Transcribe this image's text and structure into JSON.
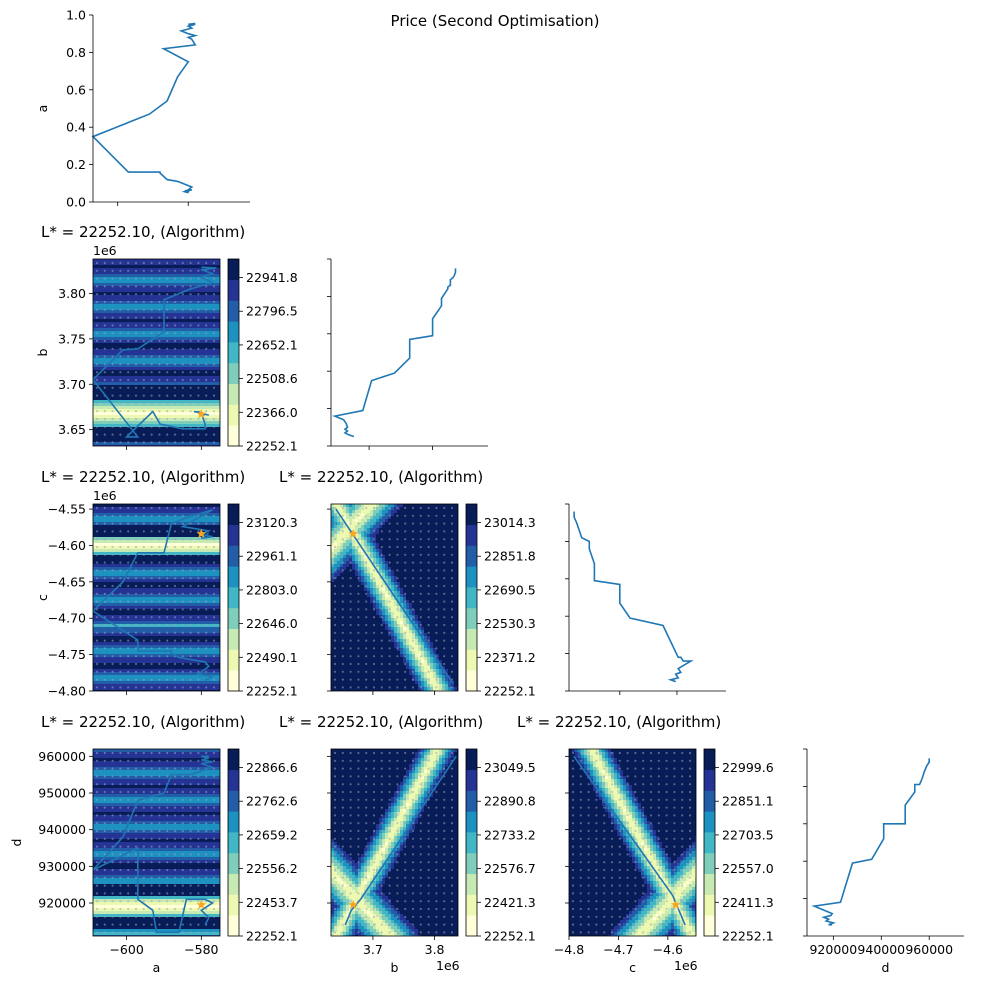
{
  "figure": {
    "suptitle": "Price (Second Optimisation)"
  },
  "colors": {
    "trace": "#1f77b4",
    "star": "#f5a623",
    "dots": "#9aa3b8",
    "colormap": [
      "#ffffd9",
      "#edf8b1",
      "#c7e9b4",
      "#7fcdbb",
      "#41b6c4",
      "#1d91c0",
      "#225ea8",
      "#253494",
      "#081d58"
    ]
  },
  "chart_data": [
    {
      "id": "diag-a",
      "type": "line",
      "row": 0,
      "col": 0,
      "title": "",
      "xlabel": "",
      "ylabel": "a",
      "xlim": [
        -607,
        -571
      ],
      "ylim": [
        0,
        1
      ],
      "xticks": [
        -600,
        -580
      ],
      "xtick_labels": [
        "",
        ""
      ],
      "yticks": [
        0.0,
        0.2,
        0.4,
        0.6,
        0.8,
        1.0
      ],
      "ytick_labels": [
        "0.0",
        "0.2",
        "0.4",
        "0.6",
        "0.8",
        "1.0"
      ],
      "x": [
        -580,
        -581,
        -580,
        -579,
        -581,
        -580,
        -580,
        -579,
        -583,
        -586,
        -588,
        -588,
        -597,
        -607,
        -591,
        -586,
        -583,
        -580,
        -587,
        -578,
        -579,
        -580,
        -578,
        -580,
        -582,
        -579,
        -580,
        -578,
        -580,
        -578
      ],
      "y": [
        0.05,
        0.055,
        0.06,
        0.065,
        0.06,
        0.055,
        0.065,
        0.08,
        0.11,
        0.12,
        0.155,
        0.16,
        0.16,
        0.35,
        0.47,
        0.54,
        0.67,
        0.75,
        0.82,
        0.84,
        0.87,
        0.88,
        0.89,
        0.9,
        0.915,
        0.93,
        0.94,
        0.95,
        0.95,
        0.955
      ]
    },
    {
      "id": "diag-b",
      "type": "line",
      "row": 1,
      "col": 1,
      "title": "",
      "xlabel": "",
      "ylabel": "",
      "xlim": [
        0,
        1
      ],
      "ylim": [
        0,
        1
      ],
      "xticks": [
        0.3,
        0.8
      ],
      "xtick_labels": [
        "",
        ""
      ],
      "yticks": [
        0.0,
        0.2,
        0.4,
        0.6,
        0.8,
        1.0
      ],
      "ytick_labels": [
        "",
        "",
        "",
        "",
        "",
        ""
      ],
      "x": [
        0.18,
        0.14,
        0.11,
        0.13,
        0.11,
        0.13,
        0.12,
        0.1,
        0.03,
        0.25,
        0.32,
        0.5,
        0.62,
        0.62,
        0.8,
        0.8,
        0.87,
        0.87,
        0.88,
        0.9,
        0.92,
        0.92,
        0.94,
        0.94,
        0.94,
        0.96,
        0.97,
        0.98,
        0.98
      ],
      "y": [
        0.05,
        0.06,
        0.07,
        0.08,
        0.09,
        0.1,
        0.12,
        0.14,
        0.16,
        0.19,
        0.35,
        0.39,
        0.47,
        0.57,
        0.59,
        0.68,
        0.75,
        0.79,
        0.8,
        0.82,
        0.84,
        0.85,
        0.86,
        0.87,
        0.89,
        0.9,
        0.91,
        0.93,
        0.95
      ]
    },
    {
      "id": "diag-c",
      "type": "line",
      "row": 2,
      "col": 2,
      "title": "",
      "xlabel": "",
      "ylabel": "",
      "xlim": [
        0,
        1
      ],
      "ylim": [
        0,
        1
      ],
      "xticks": [
        0.4,
        0.85
      ],
      "xtick_labels": [
        "",
        ""
      ],
      "yticks": [
        0.0,
        0.2,
        0.4,
        0.6,
        0.8,
        1.0
      ],
      "ytick_labels": [
        "",
        "",
        "",
        "",
        "",
        ""
      ],
      "x": [
        0.84,
        0.8,
        0.86,
        0.84,
        0.88,
        0.86,
        0.96,
        0.9,
        0.88,
        0.86,
        0.74,
        0.48,
        0.4,
        0.4,
        0.2,
        0.2,
        0.16,
        0.16,
        0.1,
        0.08,
        0.06,
        0.04,
        0.04
      ],
      "y": [
        0.05,
        0.06,
        0.07,
        0.09,
        0.1,
        0.12,
        0.16,
        0.16,
        0.18,
        0.18,
        0.35,
        0.39,
        0.47,
        0.57,
        0.59,
        0.68,
        0.76,
        0.8,
        0.82,
        0.86,
        0.9,
        0.93,
        0.96
      ]
    },
    {
      "id": "diag-d",
      "type": "line",
      "row": 3,
      "col": 3,
      "title": "",
      "xlabel": "d",
      "ylabel": "",
      "xlim": [
        909000,
        962000
      ],
      "ylim": [
        0,
        1
      ],
      "xticks": [
        920000,
        940000,
        960000
      ],
      "xtick_labels": [
        "920000",
        "940000",
        "960000"
      ],
      "yticks": [
        0.0,
        0.2,
        0.4,
        0.6,
        0.8,
        1.0
      ],
      "ytick_labels": [
        "",
        "",
        "",
        "",
        "",
        ""
      ],
      "x": [
        919500,
        918000,
        920000,
        917000,
        918000,
        916000,
        919000,
        919500,
        912000,
        923000,
        928000,
        936000,
        941000,
        941000,
        950000,
        950000,
        954000,
        954000,
        956000,
        957000,
        958000,
        959000,
        960000,
        960000
      ],
      "y": [
        0.06,
        0.06,
        0.07,
        0.08,
        0.09,
        0.1,
        0.11,
        0.12,
        0.16,
        0.18,
        0.39,
        0.41,
        0.52,
        0.6,
        0.6,
        0.7,
        0.77,
        0.81,
        0.81,
        0.84,
        0.88,
        0.91,
        0.93,
        0.95
      ]
    },
    {
      "id": "ba",
      "type": "heatmap",
      "row": 1,
      "col": 0,
      "title": "L* = 22252.10, (Algorithm)",
      "xlabel": "",
      "ylabel": "b",
      "offset_text": "1e6",
      "xlim": [
        -609,
        -575
      ],
      "ylim": [
        3632000,
        3838000
      ],
      "xticks": [
        -600,
        -580
      ],
      "xtick_labels": [
        "",
        ""
      ],
      "yticks": [
        3650000,
        3700000,
        3750000,
        3800000
      ],
      "ytick_labels": [
        "3.65",
        "3.70",
        "3.75",
        "3.80"
      ],
      "colorbar_ticks": [
        "22252.1",
        "22366.0",
        "22508.6",
        "22652.1",
        "22796.5",
        "22941.8"
      ],
      "field": "band_y",
      "band_center": 3668000,
      "band_width": 10000,
      "band_period": 220000,
      "trace_x": [
        -580,
        -579,
        -580,
        -578,
        -582,
        -580,
        -579,
        -579,
        -585,
        -591,
        -593,
        -600,
        -597,
        -609,
        -601,
        -597,
        -590,
        -590,
        -583,
        -577,
        -580,
        -577,
        -580,
        -576,
        -580
      ],
      "trace_y": [
        3665000,
        3667000,
        3668000,
        3666000,
        3670000,
        3669000,
        3656000,
        3651000,
        3651000,
        3656000,
        3670000,
        3642000,
        3642000,
        3705000,
        3738000,
        3739000,
        3758000,
        3793000,
        3805000,
        3812000,
        3818000,
        3822000,
        3826000,
        3828000,
        3829000
      ],
      "star": [
        -580,
        3667000
      ]
    },
    {
      "id": "ca",
      "type": "heatmap",
      "row": 2,
      "col": 0,
      "title": "L* = 22252.10, (Algorithm)",
      "xlabel": "",
      "ylabel": "c",
      "offset_text": "1e6",
      "xlim": [
        -609,
        -575
      ],
      "ylim": [
        -4800000,
        -4543000
      ],
      "xticks": [
        -600,
        -580
      ],
      "xtick_labels": [
        "",
        ""
      ],
      "yticks": [
        -4800000,
        -4750000,
        -4700000,
        -4650000,
        -4600000,
        -4550000
      ],
      "ytick_labels": [
        "−4.80",
        "−4.75",
        "−4.70",
        "−4.65",
        "−4.60",
        "−4.55"
      ],
      "colorbar_ticks": [
        "22252.1",
        "22490.1",
        "22646.0",
        "22803.0",
        "22961.1",
        "23120.3"
      ],
      "field": "band_y",
      "band_center": -4600000,
      "band_width": 9000,
      "band_period": 220000,
      "trace_x": [
        -579,
        -578,
        -577,
        -581,
        -580,
        -578,
        -579,
        -586,
        -588,
        -588,
        -597,
        -597,
        -609,
        -601,
        -597,
        -590,
        -588,
        -583,
        -577,
        -585,
        -578,
        -580,
        -577,
        -580,
        -578
      ],
      "trace_y": [
        -4785000,
        -4783000,
        -4780000,
        -4777000,
        -4774000,
        -4766000,
        -4760000,
        -4754000,
        -4748000,
        -4745000,
        -4745000,
        -4730000,
        -4690000,
        -4650000,
        -4610000,
        -4610000,
        -4570000,
        -4560000,
        -4551000,
        -4574000,
        -4580000,
        -4585000,
        -4588000,
        -4590000,
        -4583000
      ],
      "star": [
        -580,
        -4584000
      ]
    },
    {
      "id": "cb",
      "type": "heatmap",
      "row": 2,
      "col": 1,
      "title": "L* = 22252.10, (Algorithm)",
      "xlabel": "",
      "ylabel": "",
      "offset_text": "",
      "xlim": [
        3632000,
        3838000
      ],
      "ylim": [
        -4800000,
        -4543000
      ],
      "xticks": [
        3700000,
        3800000
      ],
      "xtick_labels": [
        "",
        ""
      ],
      "yticks": [
        -4800000,
        -4750000,
        -4700000,
        -4650000,
        -4600000,
        -4550000
      ],
      "ytick_labels": [
        "",
        "",
        "",
        "",
        "",
        ""
      ],
      "colorbar_ticks": [
        "22252.1",
        "22371.2",
        "22530.3",
        "22690.5",
        "22851.8",
        "23014.3"
      ],
      "field": "valley",
      "valley_slope": -1.2,
      "valley_anchor": [
        3668000,
        -4584000
      ],
      "trace_x": [
        3640000,
        3830000
      ],
      "trace_y": [
        -4550000,
        -4790000
      ],
      "star": [
        3668000,
        -4584000
      ]
    },
    {
      "id": "da",
      "type": "heatmap",
      "row": 3,
      "col": 0,
      "title": "L* = 22252.10, (Algorithm)",
      "xlabel": "a",
      "ylabel": "d",
      "offset_text": "",
      "xlim": [
        -609,
        -575
      ],
      "ylim": [
        911000,
        962000
      ],
      "xticks": [
        -600,
        -580
      ],
      "xtick_labels": [
        "−600",
        "−580"
      ],
      "yticks": [
        920000,
        930000,
        940000,
        950000,
        960000
      ],
      "ytick_labels": [
        "920000",
        "930000",
        "940000",
        "950000",
        "960000"
      ],
      "colorbar_ticks": [
        "22252.1",
        "22453.7",
        "22556.2",
        "22659.2",
        "22762.6",
        "22866.6"
      ],
      "field": "band_y",
      "band_center": 919000,
      "band_width": 2000,
      "band_period": 44000,
      "trace_x": [
        -579,
        -578,
        -580,
        -577,
        -579,
        -584,
        -586,
        -592,
        -593,
        -597,
        -597,
        -609,
        -601,
        -597,
        -590,
        -588,
        -583,
        -577,
        -580,
        -577,
        -580,
        -578,
        -580,
        -578
      ],
      "trace_y": [
        914000,
        916000,
        918000,
        920000,
        921000,
        921000,
        912000,
        912000,
        918000,
        921000,
        935000,
        929000,
        938000,
        948000,
        950000,
        955000,
        955000,
        957000,
        958000,
        958500,
        959000,
        959500,
        960000,
        960000
      ],
      "star": [
        -580,
        919500
      ]
    },
    {
      "id": "db",
      "type": "heatmap",
      "row": 3,
      "col": 1,
      "title": "L* = 22252.10, (Algorithm)",
      "xlabel": "b",
      "ylabel": "",
      "offset_text": "1e6",
      "xlim": [
        3632000,
        3838000
      ],
      "ylim": [
        911000,
        962000
      ],
      "xticks": [
        3700000,
        3800000
      ],
      "xtick_labels": [
        "3.7",
        "3.8"
      ],
      "yticks": [
        920000,
        930000,
        940000,
        950000,
        960000
      ],
      "ytick_labels": [
        "",
        "",
        "",
        "",
        "",
        ""
      ],
      "colorbar_ticks": [
        "22252.1",
        "22421.3",
        "22576.7",
        "22733.2",
        "22890.8",
        "23049.5"
      ],
      "field": "valley",
      "valley_slope": 0.23,
      "valley_anchor": [
        3668000,
        919500
      ],
      "trace_x": [
        3655000,
        3665000,
        3680000,
        3835000
      ],
      "trace_y": [
        914000,
        918000,
        921000,
        960000
      ],
      "star": [
        3668000,
        919500
      ]
    },
    {
      "id": "dc",
      "type": "heatmap",
      "row": 3,
      "col": 2,
      "title": "L* = 22252.10, (Algorithm)",
      "xlabel": "c",
      "ylabel": "",
      "offset_text": "1e6",
      "xlim": [
        -4800000,
        -4543000
      ],
      "ylim": [
        911000,
        962000
      ],
      "xticks": [
        -4800000,
        -4700000,
        -4600000
      ],
      "xtick_labels": [
        "−4.8",
        "−4.7",
        "−4.6"
      ],
      "yticks": [
        920000,
        930000,
        940000,
        950000,
        960000
      ],
      "ytick_labels": [
        "",
        "",
        "",
        "",
        "",
        ""
      ],
      "colorbar_ticks": [
        "22252.1",
        "22411.3",
        "22557.0",
        "22703.5",
        "22851.1",
        "22999.6"
      ],
      "field": "valley",
      "valley_slope": -0.2,
      "valley_anchor": [
        -4584000,
        919500
      ],
      "trace_x": [
        -4790000,
        -4590000,
        -4565000
      ],
      "trace_y": [
        960000,
        922000,
        914000
      ],
      "star": [
        -4584000,
        919500
      ]
    }
  ]
}
